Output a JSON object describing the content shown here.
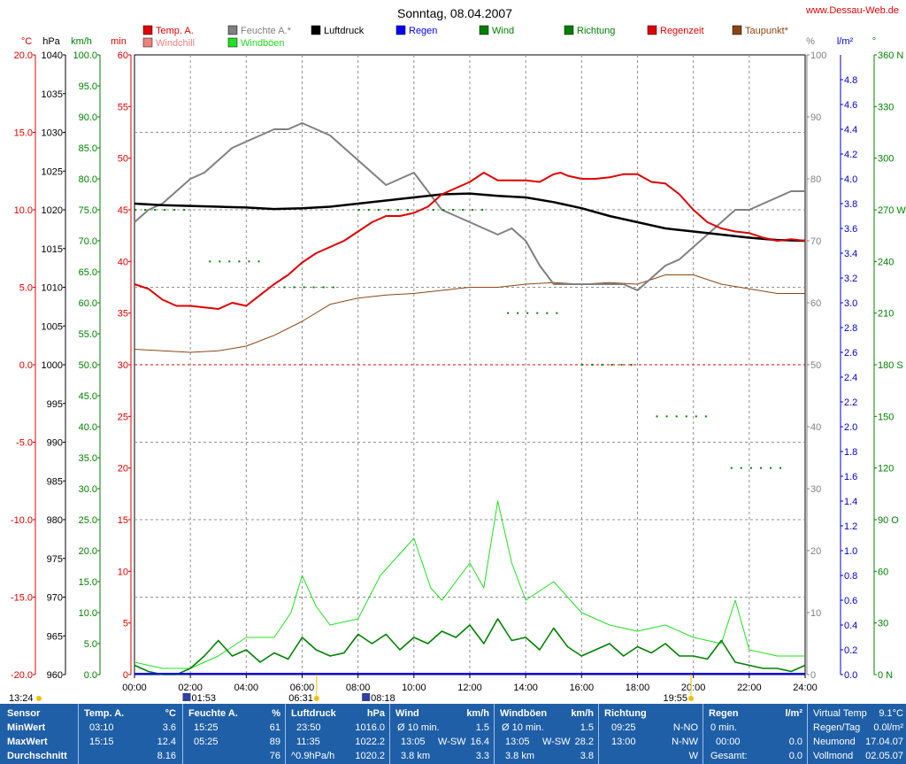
{
  "header": {
    "title": "Sonntag, 08.04.2007",
    "site": "www.Dessau-Web.de"
  },
  "legend": [
    {
      "name": "Temp. A.",
      "color": "#e00000"
    },
    {
      "name": "Windchill",
      "color": "#f08080"
    },
    {
      "name": "Feuchte A.*",
      "color": "#808080"
    },
    {
      "name": "Windböen",
      "color": "#20e020"
    },
    {
      "name": "Luftdruck",
      "color": "#000000"
    },
    {
      "name": "Regen",
      "color": "#0000ff"
    },
    {
      "name": "Wind",
      "color": "#008000"
    },
    {
      "name": "Richtung",
      "color": "#008000"
    },
    {
      "name": "Regenzeit",
      "color": "#e00000"
    },
    {
      "name": "Taupunkt*",
      "color": "#8b4513"
    }
  ],
  "axes": {
    "units_left": [
      "°C",
      "hPa",
      "km/h",
      "min"
    ],
    "units_right": [
      "%",
      "l/m²",
      "°"
    ],
    "temp_ticks": [
      "20.0",
      "15.0",
      "10.0",
      "5.0",
      "0.0",
      "-5.0",
      "-10.0",
      "-15.0",
      "-20.0"
    ],
    "hpa_ticks": [
      "1040",
      "1035",
      "1030",
      "1025",
      "1020",
      "1015",
      "1010",
      "1005",
      "1000",
      "995",
      "990",
      "985",
      "980",
      "975",
      "970",
      "965",
      "960"
    ],
    "kmh_ticks": [
      "100.0",
      "95.0",
      "90.0",
      "85.0",
      "80.0",
      "75.0",
      "70.0",
      "65.0",
      "60.0",
      "55.0",
      "50.0",
      "45.0",
      "40.0",
      "35.0",
      "30.0",
      "25.0",
      "20.0",
      "15.0",
      "10.0",
      "5.0",
      "0.0"
    ],
    "min_ticks": [
      "60",
      "55",
      "50",
      "45",
      "40",
      "35",
      "30",
      "25",
      "20",
      "15",
      "10",
      "5",
      "0"
    ],
    "pct_ticks": [
      "100",
      "90",
      "80",
      "70",
      "60",
      "50",
      "40",
      "30",
      "20",
      "10",
      "0"
    ],
    "rain_ticks": [
      "4.8",
      "4.6",
      "4.4",
      "4.2",
      "4.0",
      "3.8",
      "3.6",
      "3.4",
      "3.2",
      "3.0",
      "2.8",
      "2.6",
      "2.4",
      "2.2",
      "2.0",
      "1.8",
      "1.6",
      "1.4",
      "1.2",
      "1.0",
      "0.8",
      "0.6",
      "0.4",
      "0.2",
      "0.0"
    ],
    "dir_ticks": [
      "360 N",
      "330",
      "300",
      "270 W",
      "240",
      "210",
      "180 S",
      "150",
      "120",
      "90 O",
      "60",
      "30",
      "0 N"
    ],
    "x_ticks": [
      "00:00",
      "02:00",
      "04:00",
      "06:00",
      "08:00",
      "10:00",
      "12:00",
      "14:00",
      "16:00",
      "18:00",
      "20:00",
      "22:00",
      "24:00"
    ]
  },
  "sun_moon": {
    "moonrise": "01:53",
    "moonset": "08:18",
    "sunrise": "06:31",
    "sunset": "19:55",
    "daylength": "13:24"
  },
  "chart_data": {
    "type": "line",
    "x_unit": "hour",
    "xlim": [
      0,
      24
    ],
    "series": [
      {
        "name": "Temp. A.",
        "axis": "°C",
        "ylim": [
          -20,
          20
        ],
        "x": [
          0,
          0.5,
          1,
          1.5,
          2,
          2.5,
          3,
          3.5,
          4,
          4.5,
          5,
          5.5,
          6,
          6.5,
          7,
          7.5,
          8,
          8.5,
          9,
          9.5,
          10,
          10.5,
          11,
          11.5,
          12,
          12.5,
          13,
          13.5,
          14,
          14.5,
          15,
          15.25,
          15.5,
          16,
          16.5,
          17,
          17.5,
          18,
          18.5,
          19,
          19.5,
          20,
          20.5,
          21,
          21.5,
          22,
          22.5,
          23,
          23.5,
          24
        ],
        "values": [
          5.2,
          4.9,
          4.2,
          3.8,
          3.8,
          3.7,
          3.6,
          4.0,
          3.8,
          4.5,
          5.2,
          5.8,
          6.6,
          7.2,
          7.6,
          8.0,
          8.6,
          9.2,
          9.6,
          9.6,
          9.8,
          10.2,
          11.0,
          11.4,
          11.8,
          12.4,
          11.9,
          11.9,
          11.9,
          11.8,
          12.3,
          12.4,
          12.2,
          12.0,
          12.0,
          12.1,
          12.3,
          12.3,
          11.8,
          11.7,
          11.0,
          10.0,
          9.2,
          8.8,
          8.6,
          8.5,
          8.2,
          8.0,
          8.1,
          8.0
        ]
      },
      {
        "name": "Feuchte A.*",
        "axis": "%",
        "ylim": [
          0,
          100
        ],
        "x": [
          0,
          0.5,
          1,
          1.5,
          2,
          2.5,
          3,
          3.5,
          4,
          4.5,
          5,
          5.5,
          6,
          6.5,
          7,
          7.5,
          8,
          8.5,
          9,
          9.5,
          10,
          10.5,
          11,
          11.5,
          12,
          12.5,
          13,
          13.5,
          14,
          14.5,
          15,
          15.5,
          16,
          16.5,
          17,
          17.5,
          18,
          18.5,
          19,
          19.5,
          20,
          20.5,
          21,
          21.5,
          22,
          22.5,
          23,
          23.5,
          24
        ],
        "values": [
          73,
          75,
          76,
          78,
          80,
          81,
          83,
          85,
          86,
          87,
          88,
          88,
          89,
          88,
          87,
          85,
          83,
          81,
          79,
          80,
          81,
          78,
          75,
          74,
          73,
          72,
          71,
          72,
          70,
          66,
          63,
          63,
          63,
          63,
          63,
          63,
          62,
          64,
          66,
          67,
          69,
          71,
          73,
          75,
          75,
          76,
          77,
          78,
          78
        ]
      },
      {
        "name": "Luftdruck",
        "axis": "hPa",
        "ylim": [
          960,
          1040
        ],
        "x": [
          0,
          1,
          2,
          3,
          4,
          5,
          6,
          7,
          8,
          9,
          10,
          11,
          12,
          13,
          14,
          15,
          16,
          17,
          18,
          19,
          20,
          21,
          22,
          23,
          24
        ],
        "values": [
          1020.8,
          1020.6,
          1020.5,
          1020.4,
          1020.3,
          1020.1,
          1020.2,
          1020.4,
          1020.8,
          1021.2,
          1021.6,
          1022.0,
          1022.1,
          1021.8,
          1021.6,
          1021.0,
          1020.2,
          1019.2,
          1018.4,
          1017.6,
          1017.2,
          1016.8,
          1016.4,
          1016.1,
          1016.0
        ]
      },
      {
        "name": "Taupunkt*",
        "axis": "°C",
        "ylim": [
          -20,
          20
        ],
        "x": [
          0,
          1,
          2,
          3,
          4,
          5,
          6,
          7,
          8,
          9,
          10,
          11,
          12,
          13,
          14,
          15,
          16,
          17,
          18,
          19,
          20,
          21,
          22,
          23,
          24
        ],
        "values": [
          1.0,
          0.9,
          0.8,
          0.9,
          1.2,
          1.9,
          2.8,
          3.9,
          4.3,
          4.5,
          4.6,
          4.8,
          5.0,
          5.0,
          5.2,
          5.3,
          5.2,
          5.3,
          5.2,
          5.8,
          5.8,
          5.2,
          4.9,
          4.6,
          4.6
        ]
      },
      {
        "name": "Wind",
        "axis": "km/h",
        "ylim": [
          0,
          100
        ],
        "x": [
          0,
          0.5,
          1,
          1.5,
          2,
          2.5,
          3,
          3.5,
          4,
          4.5,
          5,
          5.5,
          6,
          6.5,
          7,
          7.5,
          8,
          8.5,
          9,
          9.5,
          10,
          10.5,
          11,
          11.5,
          12,
          12.5,
          13,
          13.5,
          14,
          14.5,
          15,
          15.5,
          16,
          16.5,
          17,
          17.5,
          18,
          18.5,
          19,
          19.5,
          20,
          20.5,
          21,
          21.5,
          22,
          22.5,
          23,
          23.5,
          24
        ],
        "values": [
          1.5,
          0.5,
          0,
          0,
          1.0,
          3.0,
          5.5,
          3.0,
          4.0,
          2.0,
          3.5,
          2.5,
          6.0,
          4.0,
          3.0,
          3.5,
          6.5,
          5.0,
          6.5,
          4.0,
          6.0,
          5.0,
          7.0,
          6.0,
          8.0,
          5.0,
          9.0,
          5.5,
          6.0,
          4.0,
          7.5,
          4.5,
          3.0,
          4.0,
          5.0,
          3.0,
          4.5,
          3.5,
          5.0,
          3.0,
          3.0,
          2.5,
          5.5,
          2.0,
          1.5,
          1.0,
          1.0,
          0.5,
          1.5
        ]
      },
      {
        "name": "Windböen",
        "axis": "km/h",
        "ylim": [
          0,
          100
        ],
        "x": [
          0,
          1,
          2,
          3,
          4,
          5,
          5.6,
          6,
          6.5,
          7,
          8,
          8.8,
          9.4,
          10,
          10.6,
          11,
          12,
          12.5,
          13,
          13.5,
          14,
          15,
          16,
          17,
          18,
          19,
          20,
          21,
          21.5,
          22,
          23,
          24
        ],
        "values": [
          2,
          1,
          1,
          3,
          6,
          6,
          10,
          16,
          11,
          8,
          9,
          16,
          19,
          22,
          14,
          12,
          18,
          14,
          28,
          18,
          12,
          15,
          10,
          8,
          7,
          8,
          6,
          5,
          12,
          4,
          3,
          3
        ]
      }
    ],
    "wind_direction_samples_deg": [
      270,
      240,
      225,
      270,
      270,
      210,
      180,
      150,
      120
    ],
    "rain_l_m2": 0.0
  },
  "stats": {
    "row_labels": [
      "Sensor",
      "MinWert",
      "MaxWert",
      "Durchschnitt"
    ],
    "temp": {
      "header": "Temp. A.",
      "unit": "°C",
      "min_time": "03:10",
      "min_val": "3.6",
      "max_time": "15:15",
      "max_val": "12.4",
      "avg": "8.16"
    },
    "hum": {
      "header": "Feuchte A.",
      "unit": "%",
      "min_time": "15:25",
      "min_val": "61",
      "max_time": "05:25",
      "max_val": "89",
      "avg": "76"
    },
    "press": {
      "header": "Luftdruck",
      "unit": "hPa",
      "min_time": "23:50",
      "min_val": "1016.0",
      "max_time": "11:35",
      "max_val": "1022.2",
      "trend": "^0.9hPa/h",
      "avg": "1020.2"
    },
    "wind": {
      "header": "Wind",
      "unit": "km/h",
      "r1_label": "Ø 10 min.",
      "r1_val": "1.5",
      "r2_time": "13:05",
      "r2_dir": "W-SW",
      "r2_val": "16.4",
      "r3_label": "3.8 km",
      "r3_val": "3.3"
    },
    "gust": {
      "header": "Windböen",
      "unit": "km/h",
      "r1_label": "Ø 10 min.",
      "r1_val": "1.5",
      "r2_time": "13:05",
      "r2_dir": "W-SW",
      "r2_val": "28.2",
      "r3_label": "3.8 km",
      "r3_val": "3.8"
    },
    "dir": {
      "header": "Richtung",
      "r1_time": "09:25",
      "r1_val": "N-NO",
      "r2_time": "13:00",
      "r2_val": "N-NW",
      "r3_val": "W"
    },
    "rain": {
      "header": "Regen",
      "unit": "l/m²",
      "r1_label": "0 min.",
      "r2_time": "00:00",
      "r2_val": "0.0",
      "r3_label": "Gesamt:",
      "r3_val": "0.0"
    },
    "extra": {
      "vt_label": "Virtual Temp",
      "vt_val": "9.1°C",
      "rt_label": "Regen/Tag",
      "rt_val": "0.0l/m²",
      "nm_label": "Neumond",
      "nm_val": "17.04.07",
      "vm_label": "Vollmond",
      "vm_val": "02.05.07"
    }
  }
}
